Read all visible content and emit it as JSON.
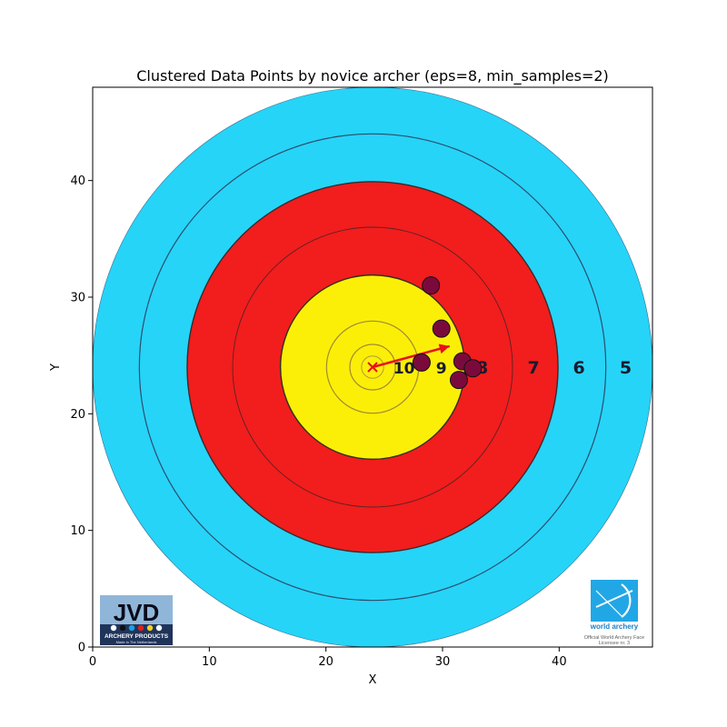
{
  "chart_data": {
    "type": "scatter",
    "title": "Clustered Data Points by novice archer (eps=8, min_samples=2)",
    "xlabel": "X",
    "ylabel": "Y",
    "xlim": [
      0,
      48
    ],
    "ylim": [
      0,
      48
    ],
    "xticks": [
      0,
      10,
      20,
      30,
      40
    ],
    "yticks": [
      0,
      10,
      20,
      30,
      40
    ],
    "background": "archery target face",
    "target_center": [
      24,
      24
    ],
    "ring_numbers": [
      "10",
      "9",
      "8",
      "7",
      "6",
      "5"
    ],
    "target_colors": {
      "blue": "#26d4f8",
      "red": "#f21d1d",
      "yellow": "#fbef08"
    },
    "points": [
      {
        "x": 29.0,
        "y": 31.0
      },
      {
        "x": 29.9,
        "y": 27.3
      },
      {
        "x": 28.2,
        "y": 24.4
      },
      {
        "x": 31.7,
        "y": 24.5
      },
      {
        "x": 32.6,
        "y": 23.9
      },
      {
        "x": 31.4,
        "y": 22.9
      }
    ],
    "point_color": "#7b0a3c",
    "center_marker": {
      "x": 24,
      "y": 24,
      "symbol": "x",
      "color": "#e8101a"
    },
    "arrow": {
      "from": [
        24,
        24
      ],
      "to": [
        30.6,
        25.8
      ],
      "color": "#e8101a"
    },
    "logos": {
      "left": {
        "brand": "JVD",
        "sub": "ARCHERY PRODUCTS",
        "fine": "Made in The Netherlands"
      },
      "right": {
        "brand": "world archery",
        "line1": "Official World Archery Face",
        "line2": "Licensee nr. 3"
      }
    }
  }
}
